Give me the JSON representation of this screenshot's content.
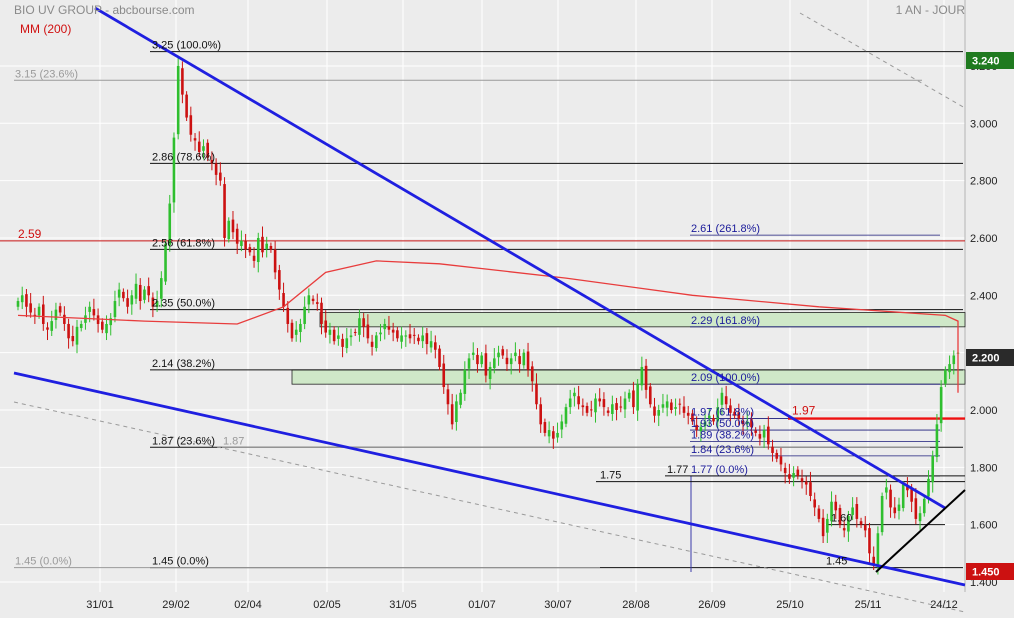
{
  "header": {
    "title": "BIO UV GROUP - abcbourse.com",
    "period": "1 AN - JOUR",
    "indicator": "MM (200)"
  },
  "colors": {
    "up": "#2fbf2f",
    "down": "#cc1111",
    "ma": "#e83c3c",
    "trend": "#1f1fe0",
    "fib": "#111111",
    "zone": "#cfe8c8",
    "grid": "#ffffff",
    "last_badge": "#2a2a2a",
    "high_badge": "#1f7a1f",
    "low_badge": "#cc1111"
  },
  "chart_data": {
    "type": "candlestick",
    "title": "BIO UV GROUP - abcbourse.com",
    "period": "1 AN - JOUR",
    "ylim": [
      1.4,
      3.27
    ],
    "y_ticks": [
      "3.200",
      "3.000",
      "2.800",
      "2.600",
      "2.400",
      "2.200",
      "2.000",
      "1.800",
      "1.600",
      "1.400"
    ],
    "x_ticks": [
      "31/01",
      "29/02",
      "02/04",
      "02/05",
      "31/05",
      "01/07",
      "30/07",
      "28/08",
      "26/09",
      "25/10",
      "25/11",
      "24/12"
    ],
    "last_value": "2.200",
    "high_value": "3.240",
    "low_value": "1.450",
    "moving_average": {
      "name": "MM (200)",
      "points": [
        [
          0,
          2.33
        ],
        [
          30,
          2.31
        ],
        [
          52,
          2.3
        ],
        [
          63,
          2.36
        ],
        [
          73,
          2.48
        ],
        [
          85,
          2.52
        ],
        [
          100,
          2.51
        ],
        [
          130,
          2.46
        ],
        [
          160,
          2.4
        ],
        [
          190,
          2.36
        ],
        [
          220,
          2.33
        ],
        [
          250,
          2.31
        ],
        [
          280,
          2.27
        ],
        [
          305,
          2.21
        ],
        [
          320,
          2.14
        ],
        [
          331,
          2.08
        ],
        [
          338,
          2.06
        ]
      ]
    },
    "red_level": {
      "label": "2.59",
      "value": 2.59
    },
    "fibonacci_main": [
      {
        "label": "3.25",
        "pct": "(100.0%)",
        "value": 3.25
      },
      {
        "label": "2.86",
        "pct": "(78.6%)",
        "value": 2.86
      },
      {
        "label": "2.56",
        "pct": "(61.8%)",
        "value": 2.56
      },
      {
        "label": "2.35",
        "pct": "(50.0%)",
        "value": 2.35
      },
      {
        "label": "2.14",
        "pct": "(38.2%)",
        "value": 2.14
      },
      {
        "label": "1.87",
        "pct": "(23.6%)",
        "value": 1.87
      },
      {
        "label": "1.45",
        "pct": "(0.0%)",
        "value": 1.45
      }
    ],
    "fibonacci_grey": [
      {
        "label": "3.15",
        "pct": "(23.6%)",
        "value": 3.15
      },
      {
        "label": "1.87",
        "pct": "",
        "value": 1.87
      },
      {
        "label": "1.45",
        "pct": "(0.0%)",
        "value": 1.45
      }
    ],
    "fibonacci_extension": [
      {
        "label": "2.61",
        "pct": "(261.8%)",
        "value": 2.61
      },
      {
        "label": "2.29",
        "pct": "(161.8%)",
        "value": 2.29
      },
      {
        "label": "2.09",
        "pct": "(100.0%)",
        "value": 2.09
      },
      {
        "label": "1.97",
        "pct": "(61.8%)",
        "value": 1.97
      },
      {
        "label": "1.93",
        "pct": "(50.0%)",
        "value": 1.93
      },
      {
        "label": "1.89",
        "pct": "(38.2%)",
        "value": 1.89
      },
      {
        "label": "1.84",
        "pct": "(23.6%)",
        "value": 1.84
      },
      {
        "label": "1.77",
        "pct": "(0.0%)",
        "value": 1.77
      }
    ],
    "extra_levels": [
      {
        "label": "1.97",
        "value": 1.97
      },
      {
        "label": "1.77",
        "value": 1.77
      },
      {
        "label": "1.75",
        "value": 1.75
      },
      {
        "label": "1.60",
        "value": 1.6
      },
      {
        "label": "1.45",
        "value": 1.45
      }
    ],
    "zones": [
      {
        "from": 2.29,
        "to": 2.34
      },
      {
        "from": 2.09,
        "to": 2.14
      }
    ],
    "closes": [
      2.38,
      2.4,
      2.36,
      2.34,
      2.33,
      2.36,
      2.3,
      2.28,
      2.31,
      2.35,
      2.34,
      2.3,
      2.25,
      2.24,
      2.29,
      2.3,
      2.33,
      2.36,
      2.33,
      2.3,
      2.28,
      2.3,
      2.32,
      2.38,
      2.42,
      2.39,
      2.36,
      2.4,
      2.44,
      2.38,
      2.42,
      2.4,
      2.36,
      2.38,
      2.46,
      2.58,
      2.72,
      2.95,
      3.2,
      3.1,
      3.02,
      2.96,
      2.94,
      2.9,
      2.92,
      2.88,
      2.86,
      2.82,
      2.8,
      2.6,
      2.66,
      2.62,
      2.58,
      2.59,
      2.56,
      2.55,
      2.52,
      2.6,
      2.55,
      2.58,
      2.56,
      2.48,
      2.42,
      2.36,
      2.3,
      2.25,
      2.28,
      2.3,
      2.36,
      2.4,
      2.38,
      2.37,
      2.3,
      2.27,
      2.28,
      2.24,
      2.26,
      2.22,
      2.25,
      2.26,
      2.27,
      2.32,
      2.29,
      2.25,
      2.22,
      2.26,
      2.27,
      2.3,
      2.28,
      2.27,
      2.25,
      2.26,
      2.26,
      2.25,
      2.26,
      2.24,
      2.26,
      2.23,
      2.24,
      2.21,
      2.15,
      2.08,
      2.02,
      1.95,
      2.03,
      2.06,
      2.14,
      2.18,
      2.2,
      2.16,
      2.19,
      2.12,
      2.15,
      2.18,
      2.2,
      2.19,
      2.16,
      2.18,
      2.2,
      2.16,
      2.2,
      2.14,
      2.1,
      2.02,
      1.95,
      1.92,
      1.93,
      1.9,
      1.92,
      1.96,
      2.01,
      2.04,
      2.06,
      2.02,
      2.01,
      1.99,
      2.0,
      2.04,
      2.03,
      2.01,
      1.99,
      2.02,
      2.0,
      2.01,
      2.04,
      2.06,
      2.01,
      2.09,
      2.15,
      2.07,
      2.02,
      1.98,
      2.0,
      2.02,
      2.03,
      2.0,
      2.01,
      2.02,
      1.99,
      1.98,
      1.96,
      1.93,
      1.94,
      1.96,
      1.98,
      1.96,
      2.01,
      2.06,
      2.02,
      1.99,
      1.98,
      1.97,
      1.95,
      1.96,
      1.94,
      1.92,
      1.9,
      1.93,
      1.88,
      1.85,
      1.83,
      1.81,
      1.78,
      1.76,
      1.78,
      1.77,
      1.75,
      1.74,
      1.7,
      1.66,
      1.62,
      1.56,
      1.62,
      1.68,
      1.65,
      1.6,
      1.58,
      1.63,
      1.66,
      1.62,
      1.6,
      1.58,
      1.5,
      1.46,
      1.57,
      1.7,
      1.73,
      1.66,
      1.64,
      1.67,
      1.74,
      1.72,
      1.68,
      1.62,
      1.64,
      1.69,
      1.76,
      1.84,
      1.95,
      2.08,
      2.14,
      2.16,
      2.19,
      2.2
    ]
  }
}
